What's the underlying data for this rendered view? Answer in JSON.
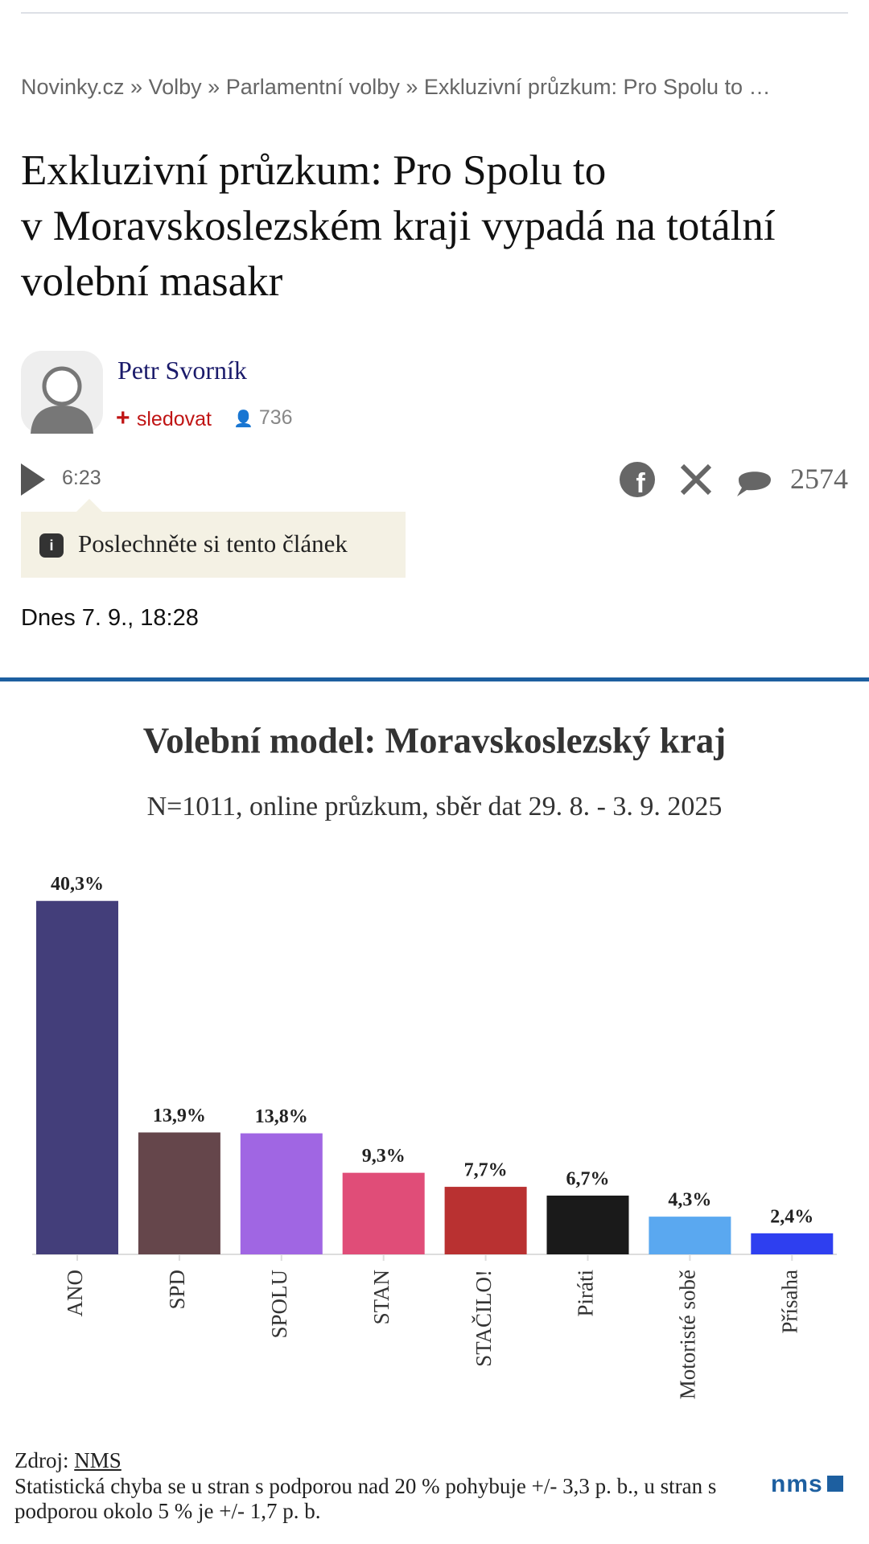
{
  "breadcrumb": {
    "items": [
      "Novinky.cz",
      "Volby",
      "Parlamentní volby",
      "Exkluzivní průzkum: Pro Spolu to …"
    ],
    "separator": "»"
  },
  "article": {
    "title": "Exkluzivní průzkum: Pro Spolu to v Moravskoslezském kraji vypadá na totální volební masakr",
    "author": "Petr Svorník",
    "follow": "sledovat",
    "followers": "736",
    "duration": "6:23",
    "comments": "2574",
    "listen": "Poslechněte si tento článek",
    "date": "Dnes 7. 9., 18:28"
  },
  "chart_data": {
    "type": "bar",
    "title": "Volební model: Moravskoslezský kraj",
    "subtitle": "N=1011, online průzkum, sběr dat 29. 8. - 3. 9. 2025",
    "categories": [
      "ANO",
      "SPD",
      "SPOLU",
      "STAN",
      "STAČILO!",
      "Piráti",
      "Motoristé sobě",
      "Přísaha"
    ],
    "values": [
      40.3,
      13.9,
      13.8,
      9.3,
      7.7,
      6.7,
      4.3,
      2.4
    ],
    "value_labels": [
      "40,3%",
      "13,9%",
      "13,8%",
      "9,3%",
      "7,7%",
      "6,7%",
      "4,3%",
      "2,4%"
    ],
    "colors": [
      "#433e7a",
      "#65464b",
      "#a066e3",
      "#e04d78",
      "#b93131",
      "#1a1a1a",
      "#5aa8f0",
      "#2e3ff0"
    ],
    "ylim": [
      0,
      45
    ],
    "source_label": "Zdroj:",
    "source": "NMS",
    "note": "Statistická chyba se u stran s podporou nad 20 % pohybuje +/- 3,3 p. b., u stran s podporou okolo 5 % je +/- 1,7 p. b.",
    "logo": "nms"
  }
}
